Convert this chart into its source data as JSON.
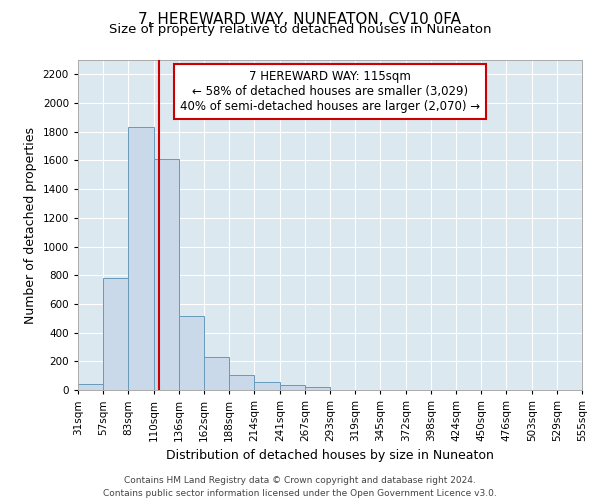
{
  "title": "7, HEREWARD WAY, NUNEATON, CV10 0FA",
  "subtitle": "Size of property relative to detached houses in Nuneaton",
  "xlabel": "Distribution of detached houses by size in Nuneaton",
  "ylabel": "Number of detached properties",
  "bin_edges": [
    31,
    57,
    83,
    110,
    136,
    162,
    188,
    214,
    241,
    267,
    293,
    319,
    345,
    372,
    398,
    424,
    450,
    476,
    503,
    529,
    555
  ],
  "bar_heights": [
    45,
    780,
    1830,
    1610,
    515,
    230,
    105,
    55,
    35,
    20,
    0,
    0,
    0,
    0,
    0,
    0,
    0,
    0,
    0,
    0
  ],
  "bar_color": "#c9d9ea",
  "bar_edgecolor": "#6699bb",
  "red_line_x": 115,
  "red_line_color": "#cc0000",
  "ylim": [
    0,
    2300
  ],
  "yticks": [
    0,
    200,
    400,
    600,
    800,
    1000,
    1200,
    1400,
    1600,
    1800,
    2000,
    2200
  ],
  "annotation_line1": "7 HEREWARD WAY: 115sqm",
  "annotation_line2": "← 58% of detached houses are smaller (3,029)",
  "annotation_line3": "40% of semi-detached houses are larger (2,070) →",
  "annotation_box_color": "#ffffff",
  "annotation_box_edgecolor": "#cc0000",
  "footer_line1": "Contains HM Land Registry data © Crown copyright and database right 2024.",
  "footer_line2": "Contains public sector information licensed under the Open Government Licence v3.0.",
  "plot_bg_color": "#dce8f0",
  "fig_bg_color": "#ffffff",
  "grid_color": "#ffffff",
  "title_fontsize": 11,
  "subtitle_fontsize": 9.5,
  "axis_label_fontsize": 9,
  "tick_fontsize": 7.5,
  "annotation_fontsize": 8.5,
  "footer_fontsize": 6.5
}
